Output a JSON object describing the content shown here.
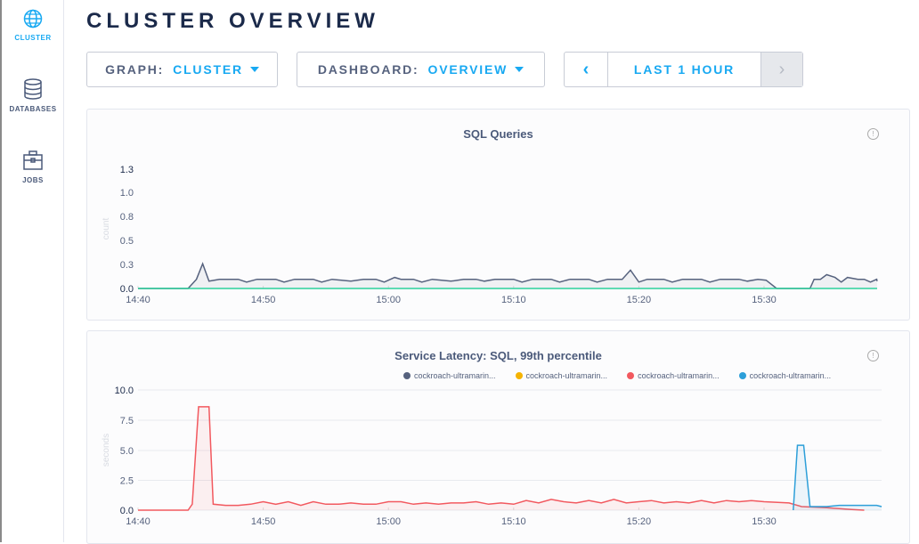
{
  "sidebar": {
    "items": [
      {
        "label": "CLUSTER",
        "icon": "globe-icon",
        "active": true
      },
      {
        "label": "DATABASES",
        "icon": "database-icon"
      },
      {
        "label": "JOBS",
        "icon": "briefcase-icon"
      }
    ]
  },
  "header": {
    "title": "CLUSTER OVERVIEW"
  },
  "controls": {
    "graph_label": "GRAPH:",
    "graph_value": "CLUSTER",
    "dashboard_label": "DASHBOARD:",
    "dashboard_value": "OVERVIEW",
    "time_range": "LAST 1 HOUR",
    "prev": "‹",
    "next": "›"
  },
  "colors": {
    "accent": "#18a9f2",
    "navy": "#1b2a4a",
    "sql_line": "#56627e",
    "zero_line": "#2bd19b"
  },
  "chart_data": [
    {
      "type": "area",
      "title": "SQL Queries",
      "ylabel": "count",
      "ylim": [
        0,
        1.3
      ],
      "yticks": [
        "0.0",
        "0.3",
        "0.5",
        "0.8",
        "1.0",
        "1.3"
      ],
      "xticks": [
        "14:40",
        "14:50",
        "15:00",
        "15:10",
        "15:20",
        "15:30"
      ],
      "xrange": [
        "14:40",
        "15:39"
      ],
      "series": [
        {
          "color": "#56627e",
          "points": [
            [
              "14:40",
              0
            ],
            [
              "14:44",
              0
            ],
            [
              "14:44:40",
              0.1
            ],
            [
              "14:45:10",
              0.27
            ],
            [
              "14:45:40",
              0.08
            ],
            [
              "14:46:30",
              0.1
            ],
            [
              "14:48",
              0.1
            ],
            [
              "14:48:40",
              0.07
            ],
            [
              "14:49:30",
              0.1
            ],
            [
              "14:51",
              0.1
            ],
            [
              "14:51:40",
              0.07
            ],
            [
              "14:52:30",
              0.1
            ],
            [
              "14:54",
              0.1
            ],
            [
              "14:54:40",
              0.07
            ],
            [
              "14:55:30",
              0.1
            ],
            [
              "14:57",
              0.08
            ],
            [
              "14:58",
              0.1
            ],
            [
              "14:59",
              0.1
            ],
            [
              "14:59:40",
              0.07
            ],
            [
              "15:00:30",
              0.12
            ],
            [
              "15:01",
              0.1
            ],
            [
              "15:02",
              0.1
            ],
            [
              "15:02:40",
              0.07
            ],
            [
              "15:03:30",
              0.1
            ],
            [
              "15:05",
              0.08
            ],
            [
              "15:06",
              0.1
            ],
            [
              "15:07",
              0.1
            ],
            [
              "15:07:40",
              0.08
            ],
            [
              "15:08:30",
              0.1
            ],
            [
              "15:10",
              0.1
            ],
            [
              "15:10:40",
              0.07
            ],
            [
              "15:11:30",
              0.1
            ],
            [
              "15:13",
              0.1
            ],
            [
              "15:13:40",
              0.07
            ],
            [
              "15:14:30",
              0.1
            ],
            [
              "15:16",
              0.1
            ],
            [
              "15:16:40",
              0.07
            ],
            [
              "15:17:30",
              0.1
            ],
            [
              "15:18:40",
              0.1
            ],
            [
              "15:19:20",
              0.2
            ],
            [
              "15:20",
              0.07
            ],
            [
              "15:20:40",
              0.1
            ],
            [
              "15:22",
              0.1
            ],
            [
              "15:22:40",
              0.07
            ],
            [
              "15:23:30",
              0.1
            ],
            [
              "15:25",
              0.1
            ],
            [
              "15:25:40",
              0.07
            ],
            [
              "15:26:30",
              0.1
            ],
            [
              "15:28",
              0.1
            ],
            [
              "15:28:40",
              0.08
            ],
            [
              "15:29:30",
              0.1
            ],
            [
              "15:30:10",
              0.09
            ],
            [
              "15:31",
              0
            ],
            [
              "15:33:40",
              0
            ],
            [
              "15:34",
              0.1
            ],
            [
              "15:34:30",
              0.1
            ],
            [
              "15:35",
              0.15
            ],
            [
              "15:35:40",
              0.12
            ],
            [
              "15:36:10",
              0.07
            ],
            [
              "15:36:40",
              0.12
            ],
            [
              "15:37:30",
              0.1
            ],
            [
              "15:38",
              0.1
            ],
            [
              "15:38:30",
              0.07
            ],
            [
              "15:39",
              0.1
            ],
            [
              "15:40",
              0.08
            ]
          ]
        },
        {
          "color": "#2bd19b",
          "points": [
            [
              "14:40",
              0
            ],
            [
              "15:40",
              0
            ]
          ]
        }
      ]
    },
    {
      "type": "area",
      "title": "Service Latency: SQL, 99th percentile",
      "ylabel": "seconds",
      "ylim": [
        0,
        10
      ],
      "yticks": [
        "0.0",
        "2.5",
        "5.0",
        "7.5",
        "10.0"
      ],
      "xticks": [
        "14:40",
        "14:50",
        "15:00",
        "15:10",
        "15:20",
        "15:30"
      ],
      "xrange": [
        "14:40",
        "15:39"
      ],
      "legend": [
        "cockroach-ultramarin...",
        "cockroach-ultramarin...",
        "cockroach-ultramarin...",
        "cockroach-ultramarin..."
      ],
      "legend_colors": [
        "#56627e",
        "#f5b300",
        "#f2595f",
        "#2d9fd9"
      ],
      "series": [
        {
          "color": "#f2595f",
          "points": [
            [
              "14:40",
              0
            ],
            [
              "14:44",
              0
            ],
            [
              "14:44:20",
              0.5
            ],
            [
              "14:44:50",
              8.6
            ],
            [
              "14:45:40",
              8.6
            ],
            [
              "14:46",
              0.5
            ],
            [
              "14:47",
              0.4
            ],
            [
              "14:48",
              0.4
            ],
            [
              "14:49",
              0.5
            ],
            [
              "14:50",
              0.7
            ],
            [
              "14:51",
              0.5
            ],
            [
              "14:52",
              0.7
            ],
            [
              "14:53",
              0.4
            ],
            [
              "14:54",
              0.7
            ],
            [
              "14:55",
              0.5
            ],
            [
              "14:56",
              0.5
            ],
            [
              "14:57",
              0.6
            ],
            [
              "14:58",
              0.5
            ],
            [
              "14:59",
              0.5
            ],
            [
              "15:00",
              0.7
            ],
            [
              "15:01",
              0.7
            ],
            [
              "15:02",
              0.5
            ],
            [
              "15:03",
              0.6
            ],
            [
              "15:04",
              0.5
            ],
            [
              "15:05",
              0.6
            ],
            [
              "15:06",
              0.6
            ],
            [
              "15:07",
              0.7
            ],
            [
              "15:08",
              0.5
            ],
            [
              "15:09",
              0.6
            ],
            [
              "15:10",
              0.5
            ],
            [
              "15:11",
              0.8
            ],
            [
              "15:12",
              0.6
            ],
            [
              "15:13",
              0.9
            ],
            [
              "15:14",
              0.7
            ],
            [
              "15:15",
              0.6
            ],
            [
              "15:16",
              0.8
            ],
            [
              "15:17",
              0.6
            ],
            [
              "15:18",
              0.9
            ],
            [
              "15:19",
              0.6
            ],
            [
              "15:20",
              0.7
            ],
            [
              "15:21",
              0.8
            ],
            [
              "15:22",
              0.6
            ],
            [
              "15:23",
              0.7
            ],
            [
              "15:24",
              0.6
            ],
            [
              "15:25",
              0.8
            ],
            [
              "15:26",
              0.6
            ],
            [
              "15:27",
              0.8
            ],
            [
              "15:28",
              0.7
            ],
            [
              "15:29",
              0.8
            ],
            [
              "15:30",
              0.7
            ],
            [
              "15:32",
              0.6
            ],
            [
              "15:33",
              0.3
            ],
            [
              "15:35",
              0.2
            ],
            [
              "15:37",
              0.05
            ],
            [
              "15:38",
              0
            ]
          ]
        },
        {
          "color": "#2d9fd9",
          "points": [
            [
              "15:32:20",
              0
            ],
            [
              "15:32:40",
              5.4
            ],
            [
              "15:33:10",
              5.4
            ],
            [
              "15:33:40",
              0.3
            ],
            [
              "15:35",
              0.3
            ],
            [
              "15:36",
              0.4
            ],
            [
              "15:38",
              0.4
            ],
            [
              "15:39",
              0.4
            ],
            [
              "15:40",
              0.3
            ]
          ]
        }
      ]
    }
  ]
}
